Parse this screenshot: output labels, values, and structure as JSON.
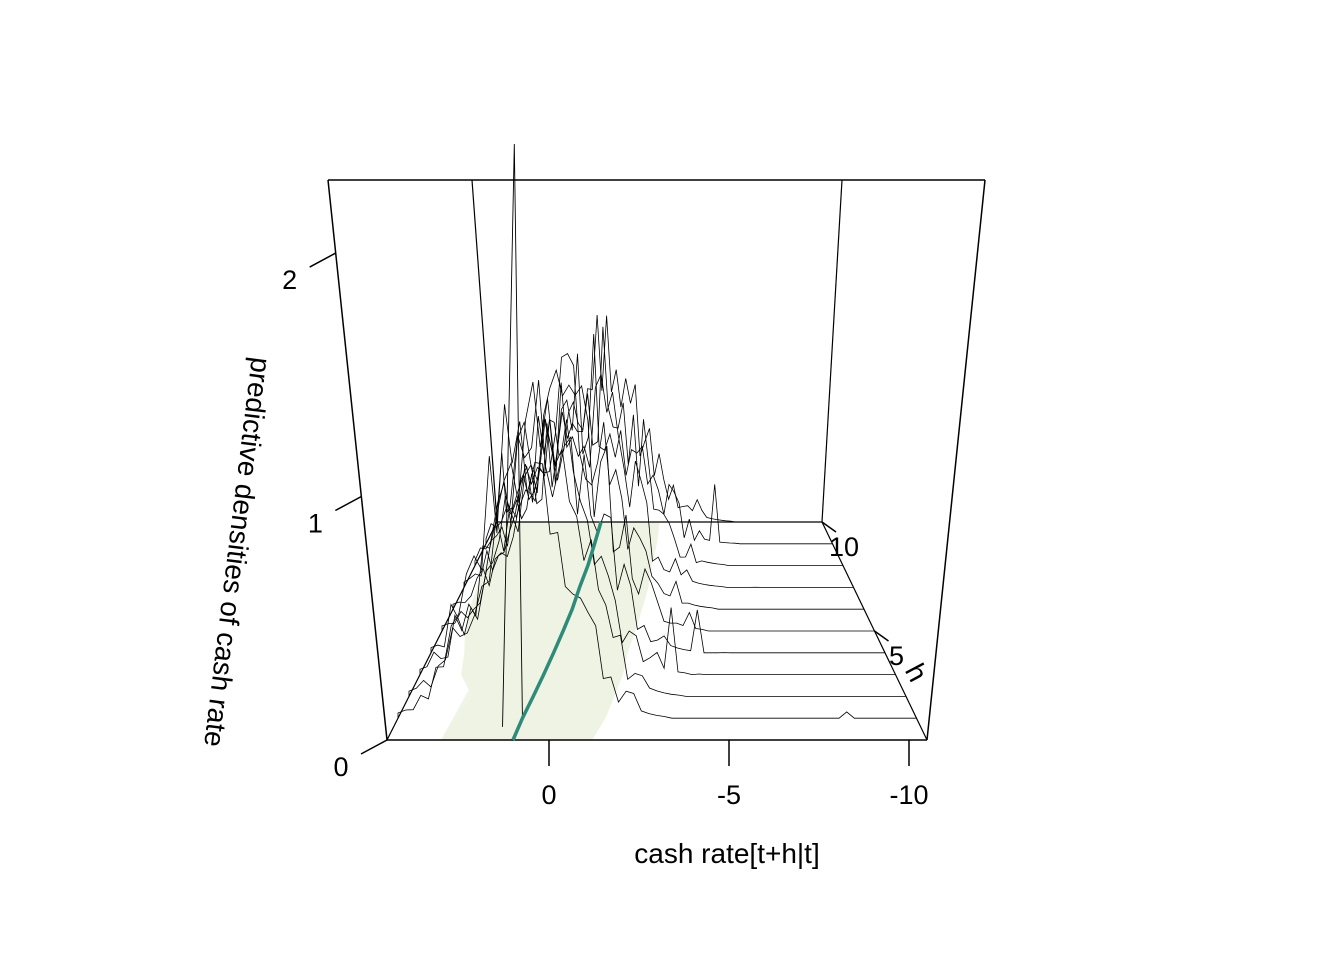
{
  "chart_data": {
    "type": "3d-perspective",
    "xlabel": "cash rate[t+h|t]",
    "ylabel": "h",
    "zlabel": "predictive densities of cash rate",
    "x_ticks": [
      {
        "value": 0,
        "label": "0"
      },
      {
        "value": -5,
        "label": "-5"
      },
      {
        "value": -10,
        "label": "-10"
      }
    ],
    "h_ticks": [
      {
        "value": 5,
        "label": "5"
      },
      {
        "value": 10,
        "label": "10"
      }
    ],
    "z_ticks": [
      {
        "value": 0,
        "label": "0"
      },
      {
        "value": 1,
        "label": "1"
      },
      {
        "value": 2,
        "label": "2"
      }
    ],
    "xlim": [
      4.5,
      -10.5
    ],
    "hlim": [
      0,
      10
    ],
    "zlim": [
      0,
      2.3
    ],
    "horizons": [
      1,
      2,
      3,
      4,
      5,
      6,
      7,
      8,
      9,
      10
    ],
    "median_path": [
      {
        "h": 0,
        "x": 1.0
      },
      {
        "h": 1,
        "x": 0.9
      },
      {
        "h": 2,
        "x": 0.75
      },
      {
        "h": 3,
        "x": 0.6
      },
      {
        "h": 4,
        "x": 0.45
      },
      {
        "h": 5,
        "x": 0.3
      },
      {
        "h": 6,
        "x": 0.15
      },
      {
        "h": 7,
        "x": 0.05
      },
      {
        "h": 8,
        "x": -0.1
      },
      {
        "h": 9,
        "x": -0.2
      },
      {
        "h": 10,
        "x": -0.3
      }
    ],
    "band_lower": [
      3.0,
      2.8,
      2.6,
      3.2,
      3.4,
      3.7,
      3.9,
      4.0,
      4.1,
      4.3,
      4.3
    ],
    "band_upper": [
      -1.2,
      -1.5,
      -1.7,
      -1.9,
      -2.0,
      -2.2,
      -2.4,
      -2.6,
      -2.7,
      -2.9,
      -3.0
    ],
    "colors": {
      "band": "#eef3e3",
      "median": "#2e8b7a",
      "lines": "#000000"
    }
  }
}
